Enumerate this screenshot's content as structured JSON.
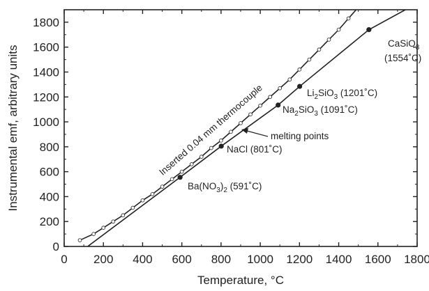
{
  "chart_data": {
    "type": "line",
    "title": "",
    "xlabel": "Temperature, °C",
    "ylabel": "Instrumental emf, arbitrary units",
    "xlim": [
      0,
      1800
    ],
    "ylim": [
      0,
      1900
    ],
    "xticks": [
      0,
      200,
      400,
      600,
      800,
      1000,
      1200,
      1400,
      1600,
      1800
    ],
    "yticks": [
      0,
      200,
      400,
      600,
      800,
      1000,
      1200,
      1400,
      1600,
      1800
    ],
    "grid": false,
    "series": [
      {
        "name": "Inserted 0.04 mm thermocouple",
        "style": "open-circles-with-line",
        "x": [
          80,
          150,
          200,
          250,
          300,
          350,
          400,
          450,
          500,
          550,
          600,
          650,
          700,
          750,
          800,
          850,
          900,
          950,
          1000,
          1050,
          1100,
          1150,
          1200,
          1250,
          1300,
          1350,
          1400,
          1450
        ],
        "y": [
          50,
          100,
          150,
          200,
          250,
          310,
          370,
          420,
          480,
          540,
          600,
          660,
          720,
          790,
          850,
          920,
          990,
          1060,
          1130,
          1200,
          1270,
          1340,
          1420,
          1500,
          1580,
          1660,
          1740,
          1830
        ]
      },
      {
        "name": "melting points",
        "style": "filled-circles-with-line",
        "x": [
          591,
          801,
          1091,
          1201,
          1554
        ],
        "y": [
          555,
          805,
          1135,
          1285,
          1740
        ],
        "line_x": [
          120,
          591,
          801,
          1091,
          1201,
          1554,
          1740
        ],
        "line_y": [
          0,
          555,
          805,
          1135,
          1285,
          1740,
          1900
        ]
      }
    ],
    "annotations": [
      {
        "id": "ba",
        "parts": [
          {
            "t": "Ba(NO"
          },
          {
            "t": "3",
            "sub": true
          },
          {
            "t": ")"
          },
          {
            "t": "2",
            "sub": true
          },
          {
            "t": " (591˚C)"
          }
        ]
      },
      {
        "id": "nacl",
        "parts": [
          {
            "t": "NaCl (801˚C)"
          }
        ]
      },
      {
        "id": "na2sio3",
        "parts": [
          {
            "t": "Na"
          },
          {
            "t": "2",
            "sub": true
          },
          {
            "t": "SiO"
          },
          {
            "t": "3",
            "sub": true
          },
          {
            "t": " (1091˚C)"
          }
        ]
      },
      {
        "id": "li2sio3",
        "parts": [
          {
            "t": "Li"
          },
          {
            "t": "2",
            "sub": true
          },
          {
            "t": "SiO"
          },
          {
            "t": "3",
            "sub": true
          },
          {
            "t": " (1201˚C)"
          }
        ]
      },
      {
        "id": "casio3",
        "parts": [
          {
            "t": "CaSiO"
          },
          {
            "t": "3",
            "sub": true
          }
        ]
      },
      {
        "id": "casio3-temp",
        "parts": [
          {
            "t": "(1554˚C)"
          }
        ]
      },
      {
        "id": "melting",
        "parts": [
          {
            "t": "melting points"
          }
        ]
      },
      {
        "id": "thermo",
        "parts": [
          {
            "t": "Inserted 0.04 mm thermocouple"
          }
        ]
      }
    ]
  }
}
